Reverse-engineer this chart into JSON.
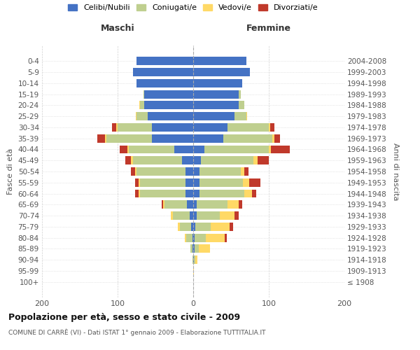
{
  "age_groups": [
    "100+",
    "95-99",
    "90-94",
    "85-89",
    "80-84",
    "75-79",
    "70-74",
    "65-69",
    "60-64",
    "55-59",
    "50-54",
    "45-49",
    "40-44",
    "35-39",
    "30-34",
    "25-29",
    "20-24",
    "15-19",
    "10-14",
    "5-9",
    "0-4"
  ],
  "birth_years": [
    "≤ 1908",
    "1909-1913",
    "1914-1918",
    "1919-1923",
    "1924-1928",
    "1929-1933",
    "1934-1938",
    "1939-1943",
    "1944-1948",
    "1949-1953",
    "1954-1958",
    "1959-1963",
    "1964-1968",
    "1969-1973",
    "1974-1978",
    "1979-1983",
    "1984-1988",
    "1989-1993",
    "1994-1998",
    "1999-2003",
    "2004-2008"
  ],
  "maschi": {
    "celibi": [
      0,
      0,
      0,
      1,
      1,
      3,
      5,
      8,
      10,
      10,
      10,
      15,
      25,
      55,
      55,
      60,
      65,
      65,
      75,
      80,
      75
    ],
    "coniugati": [
      0,
      0,
      1,
      3,
      8,
      15,
      22,
      30,
      60,
      60,
      65,
      65,
      60,
      60,
      45,
      15,
      5,
      1,
      0,
      0,
      0
    ],
    "vedovi": [
      0,
      0,
      0,
      0,
      2,
      2,
      3,
      2,
      2,
      2,
      2,
      2,
      2,
      2,
      2,
      1,
      1,
      0,
      0,
      0,
      0
    ],
    "divorziati": [
      0,
      0,
      0,
      0,
      0,
      0,
      0,
      2,
      5,
      5,
      5,
      8,
      10,
      10,
      5,
      0,
      0,
      0,
      0,
      0,
      0
    ]
  },
  "femmine": {
    "nubili": [
      0,
      0,
      1,
      2,
      2,
      3,
      5,
      5,
      8,
      8,
      8,
      10,
      15,
      40,
      45,
      55,
      60,
      60,
      65,
      75,
      70
    ],
    "coniugate": [
      0,
      0,
      2,
      5,
      15,
      20,
      30,
      40,
      60,
      58,
      55,
      70,
      85,
      65,
      55,
      15,
      8,
      3,
      0,
      0,
      0
    ],
    "vedove": [
      0,
      1,
      3,
      15,
      25,
      25,
      20,
      15,
      10,
      8,
      5,
      5,
      3,
      2,
      2,
      1,
      0,
      0,
      0,
      0,
      0
    ],
    "divorziate": [
      0,
      0,
      0,
      0,
      2,
      5,
      5,
      5,
      5,
      15,
      5,
      15,
      25,
      8,
      5,
      0,
      0,
      0,
      0,
      0,
      0
    ]
  },
  "colors": {
    "celibi": "#4472C4",
    "coniugati": "#BFCF8F",
    "vedovi": "#FFD966",
    "divorziati": "#C0392B"
  },
  "title": "Popolazione per età, sesso e stato civile - 2009",
  "subtitle": "COMUNE DI CARRÈ (VI) - Dati ISTAT 1° gennaio 2009 - Elaborazione TUTTITALIA.IT",
  "xlabel_left": "Maschi",
  "xlabel_right": "Femmine",
  "ylabel_left": "Fasce di età",
  "ylabel_right": "Anni di nascita",
  "xlim": [
    -200,
    200
  ],
  "xticks": [
    -200,
    -100,
    0,
    100,
    200
  ],
  "xticklabels": [
    "200",
    "100",
    "0",
    "100",
    "200"
  ],
  "legend_labels": [
    "Celibi/Nubili",
    "Coniugati/e",
    "Vedovi/e",
    "Divorziati/e"
  ],
  "bg_color": "#FFFFFF",
  "grid_color": "#CCCCCC"
}
